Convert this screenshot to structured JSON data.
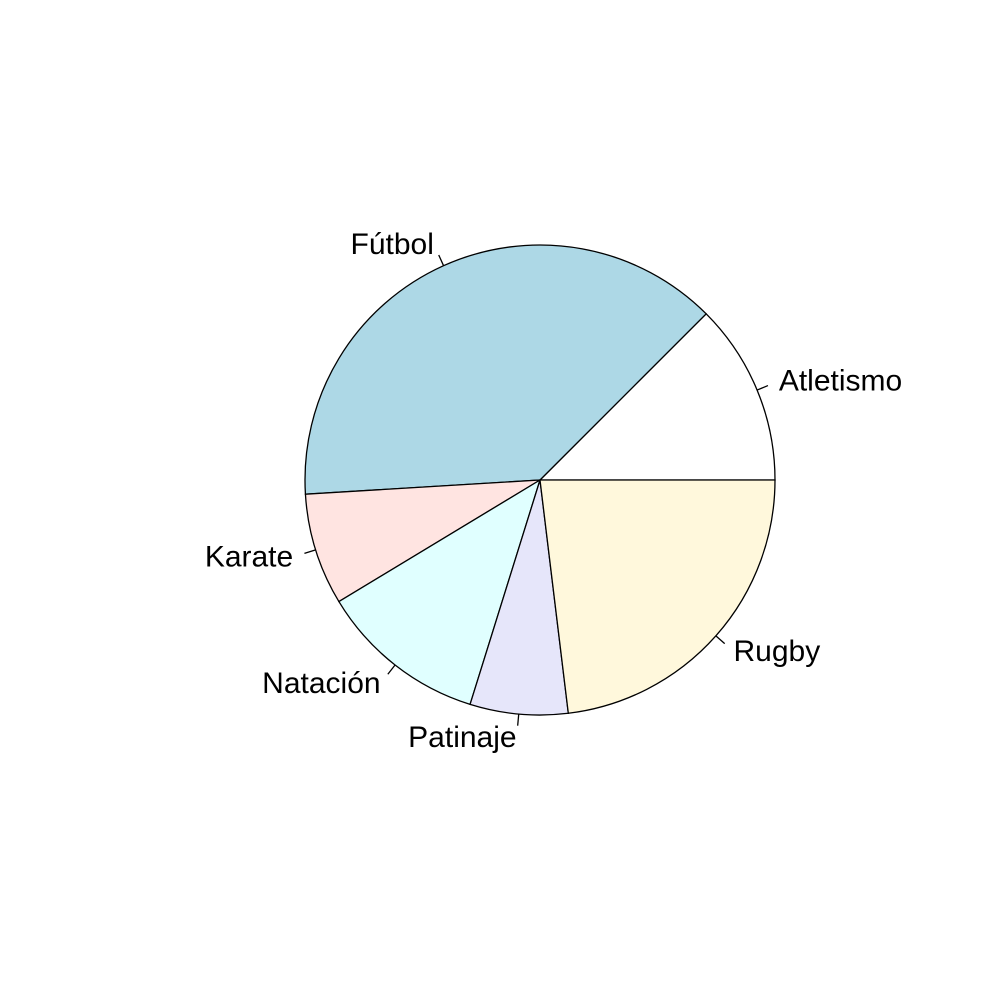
{
  "chart_data": {
    "type": "pie",
    "direction": "counter-clockwise",
    "start_angle_deg": 0,
    "slices": [
      {
        "label": "Atletismo",
        "value": 13,
        "color": "#FFFFFF"
      },
      {
        "label": "Fútbol",
        "value": 40,
        "color": "#ADD8E6"
      },
      {
        "label": "Karate",
        "value": 8,
        "color": "#FFE4E1"
      },
      {
        "label": "Natación",
        "value": 12,
        "color": "#E0FFFF"
      },
      {
        "label": "Patinaje",
        "value": 7,
        "color": "#E6E6FA"
      },
      {
        "label": "Rugby",
        "value": 24,
        "color": "#FFF8DC"
      }
    ]
  }
}
